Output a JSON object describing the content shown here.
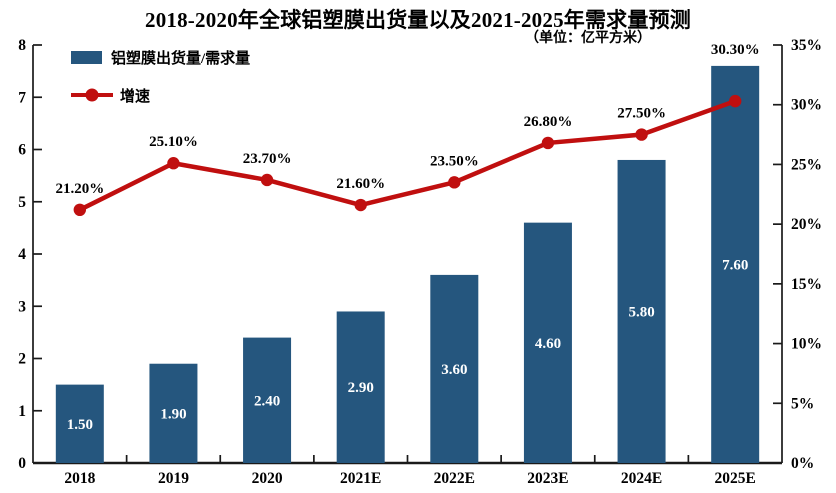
{
  "chart": {
    "title": "2018-2020年全球铝塑膜出货量以及2021-2025年需求量预测",
    "subtitle": "（单位：亿平方米）",
    "legend": [
      {
        "label": "铝塑膜出货量/需求量",
        "marker": "bar-swatch-icon"
      },
      {
        "label": "增速",
        "marker": "line-dot-swatch-icon"
      }
    ],
    "colors": {
      "bar": "#25567E",
      "line": "#C00F0F",
      "axis": "#1A1A1A",
      "text": "#000000",
      "bar_label": "#FFFFFF"
    }
  },
  "chart_data": {
    "type": "bar",
    "subtype": "bar-line-combo",
    "title": "2018-2020年全球铝塑膜出货量以及2021-2025年需求量预测",
    "unit_note": "（单位：亿平方米）",
    "categories": [
      "2018",
      "2019",
      "2020",
      "2021E",
      "2022E",
      "2023E",
      "2024E",
      "2025E"
    ],
    "series": [
      {
        "name": "铝塑膜出货量/需求量",
        "type": "bar",
        "axis": "left",
        "values": [
          1.5,
          1.9,
          2.4,
          2.9,
          3.6,
          4.6,
          5.8,
          7.6
        ],
        "labels": [
          "1.50",
          "1.90",
          "2.40",
          "2.90",
          "3.60",
          "4.60",
          "5.80",
          "7.60"
        ]
      },
      {
        "name": "增速",
        "type": "line",
        "axis": "right",
        "values": [
          21.2,
          25.1,
          23.7,
          21.6,
          23.5,
          26.8,
          27.5,
          30.3
        ],
        "labels": [
          "21.20%",
          "25.10%",
          "23.70%",
          "21.60%",
          "23.50%",
          "26.80%",
          "27.50%",
          "30.30%"
        ]
      }
    ],
    "left_axis": {
      "min": 0,
      "max": 8,
      "step": 1,
      "tick_labels": [
        "0",
        "1",
        "2",
        "3",
        "4",
        "5",
        "6",
        "7",
        "8"
      ]
    },
    "right_axis": {
      "min": 0,
      "max": 35,
      "step": 5,
      "tick_labels": [
        "0%",
        "5%",
        "10%",
        "15%",
        "20%",
        "25%",
        "30%",
        "35%"
      ]
    },
    "grid": false,
    "legend_position": "top-left",
    "data_labels": true
  }
}
